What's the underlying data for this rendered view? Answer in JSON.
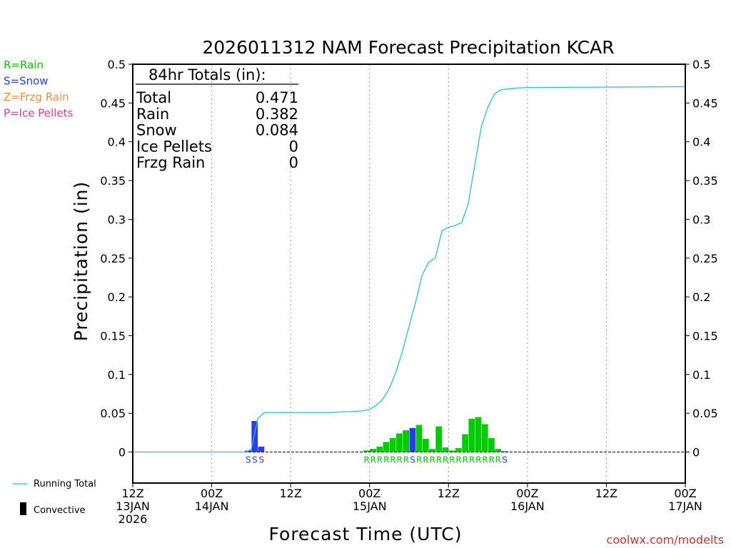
{
  "chart_data": {
    "type": "bar",
    "title": "2026011312 NAM Forecast Precipitation KCAR",
    "xlabel": "Forecast Time (UTC)",
    "ylabel": "Precipitation (in)",
    "ylim": [
      -0.04,
      0.5
    ],
    "yticks": [
      0,
      0.05,
      0.1,
      0.15,
      0.2,
      0.25,
      0.3,
      0.35,
      0.4,
      0.45,
      0.5
    ],
    "xlim_hours": [
      0,
      84
    ],
    "xticks": [
      {
        "hour": 0,
        "line1": "12Z",
        "line2": "13JAN",
        "line3": "2026"
      },
      {
        "hour": 12,
        "line1": "00Z",
        "line2": "14JAN",
        "line3": ""
      },
      {
        "hour": 24,
        "line1": "12Z",
        "line2": "",
        "line3": ""
      },
      {
        "hour": 36,
        "line1": "00Z",
        "line2": "15JAN",
        "line3": ""
      },
      {
        "hour": 48,
        "line1": "12Z",
        "line2": "",
        "line3": ""
      },
      {
        "hour": 60,
        "line1": "00Z",
        "line2": "16JAN",
        "line3": ""
      },
      {
        "hour": 72,
        "line1": "12Z",
        "line2": "",
        "line3": ""
      },
      {
        "hour": 84,
        "line1": "00Z",
        "line2": "17JAN",
        "line3": ""
      }
    ],
    "bars": [
      {
        "hour": 18,
        "value": 0.002,
        "type": "S"
      },
      {
        "hour": 19,
        "value": 0.04,
        "type": "S"
      },
      {
        "hour": 20,
        "value": 0.007,
        "type": "S"
      },
      {
        "hour": 36,
        "value": 0.002,
        "type": "R"
      },
      {
        "hour": 37,
        "value": 0.004,
        "type": "R"
      },
      {
        "hour": 38,
        "value": 0.007,
        "type": "R"
      },
      {
        "hour": 39,
        "value": 0.013,
        "type": "R"
      },
      {
        "hour": 40,
        "value": 0.018,
        "type": "R"
      },
      {
        "hour": 41,
        "value": 0.024,
        "type": "R"
      },
      {
        "hour": 42,
        "value": 0.028,
        "type": "R"
      },
      {
        "hour": 43,
        "value": 0.031,
        "type": "S"
      },
      {
        "hour": 44,
        "value": 0.035,
        "type": "R"
      },
      {
        "hour": 45,
        "value": 0.017,
        "type": "R"
      },
      {
        "hour": 46,
        "value": 0.004,
        "type": "R"
      },
      {
        "hour": 47,
        "value": 0.033,
        "type": "R"
      },
      {
        "hour": 48,
        "value": 0.006,
        "type": "R"
      },
      {
        "hour": 49,
        "value": 0.002,
        "type": "R"
      },
      {
        "hour": 50,
        "value": 0.005,
        "type": "R"
      },
      {
        "hour": 51,
        "value": 0.023,
        "type": "R"
      },
      {
        "hour": 52,
        "value": 0.043,
        "type": "R"
      },
      {
        "hour": 53,
        "value": 0.045,
        "type": "R"
      },
      {
        "hour": 54,
        "value": 0.036,
        "type": "R"
      },
      {
        "hour": 55,
        "value": 0.018,
        "type": "R"
      },
      {
        "hour": 56,
        "value": 0.004,
        "type": "R"
      },
      {
        "hour": 57,
        "value": 0.001,
        "type": "S"
      }
    ],
    "running_total": {
      "hours": [
        0,
        17,
        18,
        19,
        20,
        25,
        30,
        35,
        36,
        37,
        38,
        39,
        40,
        41,
        42,
        43,
        44,
        45,
        46,
        47,
        48,
        49,
        50,
        51,
        52,
        53,
        54,
        55,
        56,
        58,
        60,
        84
      ],
      "values": [
        0,
        0,
        0.003,
        0.043,
        0.051,
        0.051,
        0.051,
        0.053,
        0.055,
        0.06,
        0.068,
        0.082,
        0.103,
        0.13,
        0.162,
        0.193,
        0.228,
        0.245,
        0.25,
        0.285,
        0.29,
        0.292,
        0.296,
        0.32,
        0.37,
        0.42,
        0.445,
        0.462,
        0.467,
        0.469,
        0.47,
        0.471
      ]
    },
    "totals_box": {
      "heading": "84hr Totals (in):",
      "rows": [
        {
          "label": "Total",
          "value": "0.471"
        },
        {
          "label": "Rain",
          "value": "0.382"
        },
        {
          "label": "Snow",
          "value": "0.084"
        },
        {
          "label": "Ice Pellets",
          "value": "0"
        },
        {
          "label": "Frzg Rain",
          "value": "0"
        }
      ]
    },
    "precip_types": [
      {
        "code": "R",
        "label": "R=Rain",
        "color": "#00cc00"
      },
      {
        "code": "S",
        "label": "S=Snow",
        "color": "#2b3de8"
      },
      {
        "code": "Z",
        "label": "Z=Frzg Rain",
        "color": "#f08c3c"
      },
      {
        "code": "P",
        "label": "P=Ice Pellets",
        "color": "#e8388c"
      }
    ],
    "bottom_legend": {
      "running_total": "Running Total",
      "convective": "Convective"
    },
    "credit": "coolwx.com/modelts",
    "colors": {
      "running_total": "#1ec8c8",
      "rain": "#00cc00",
      "snow": "#2b3de8",
      "grid": "#999999"
    }
  }
}
